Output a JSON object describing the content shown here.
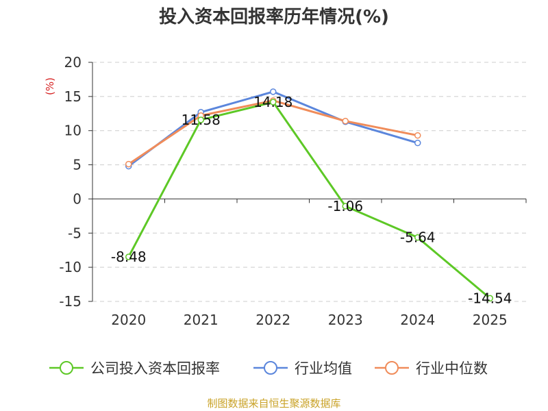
{
  "chart_data": {
    "type": "line",
    "title": "投入资本回报率历年情况(%)",
    "ylabel": "(%)",
    "categories": [
      "2020",
      "2021",
      "2022",
      "2023",
      "2024",
      "2025"
    ],
    "ylim": [
      -15,
      20
    ],
    "yticks": [
      20,
      15,
      10,
      5,
      0,
      -5,
      -10,
      -15
    ],
    "grid": true,
    "legend_position": "bottom",
    "series": [
      {
        "name": "公司投入资本回报率",
        "color": "#5dc826",
        "values": [
          -8.48,
          11.58,
          14.18,
          -1.06,
          -5.64,
          -14.54
        ],
        "labels": [
          "-8.48",
          "11.58",
          "14.18",
          "-1.06",
          "-5.64",
          "-14.54"
        ]
      },
      {
        "name": "行业均值",
        "color": "#5b86dc",
        "values": [
          4.8,
          12.7,
          15.7,
          11.3,
          8.2,
          null
        ]
      },
      {
        "name": "行业中位数",
        "color": "#f08c5a",
        "values": [
          5.1,
          12.2,
          14.4,
          11.4,
          9.3,
          null
        ]
      }
    ]
  },
  "footer": {
    "source": "制图数据来自恒生聚源数据库"
  }
}
